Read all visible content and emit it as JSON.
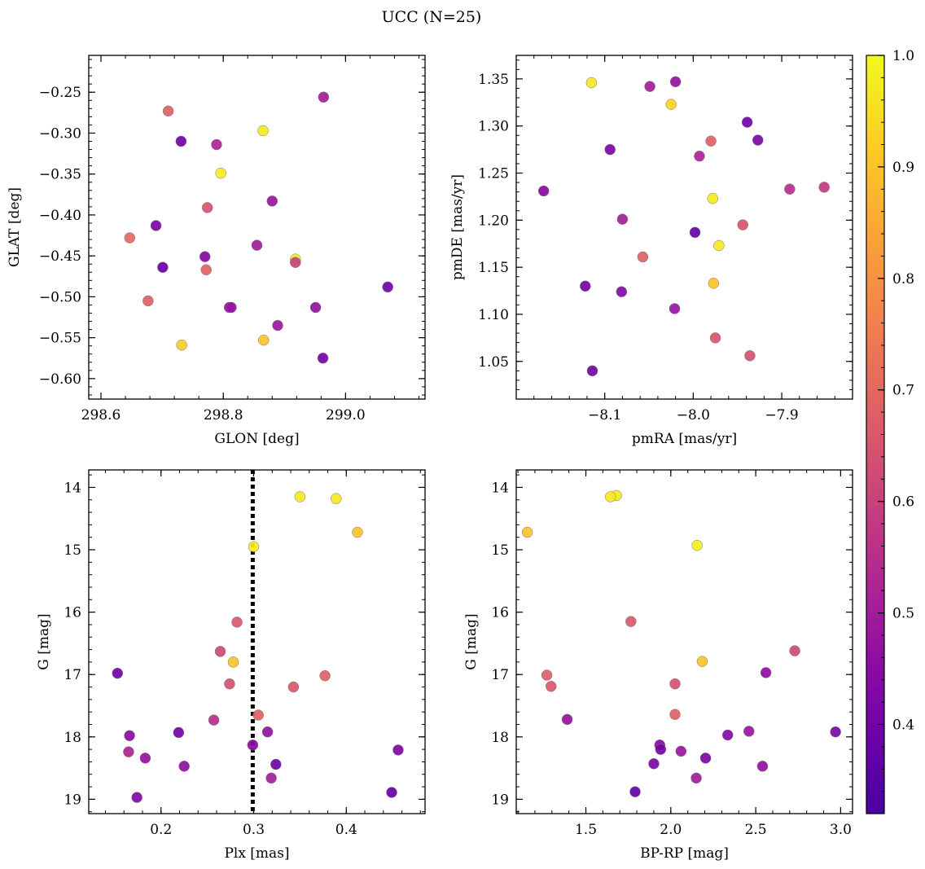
{
  "figure": {
    "title": "UCC (N=25)"
  },
  "chart_data": [
    {
      "type": "scatter",
      "xlabel": "GLON [deg]",
      "ylabel": "GLAT [deg]",
      "xlim": [
        298.58,
        299.13
      ],
      "ylim": [
        -0.625,
        -0.205
      ],
      "xticks": [
        298.6,
        298.8,
        299.0
      ],
      "xtick_labels": [
        "298.6",
        "298.8",
        "299.0"
      ],
      "yticks": [
        -0.6,
        -0.55,
        -0.5,
        -0.45,
        -0.4,
        -0.35,
        -0.3,
        -0.25
      ],
      "ytick_labels": [
        "−0.60",
        "−0.55",
        "−0.50",
        "−0.45",
        "−0.40",
        "−0.35",
        "−0.30",
        "−0.25"
      ],
      "points": [
        {
          "x": 298.964,
          "y": -0.256,
          "c": 0.5
        },
        {
          "x": 298.71,
          "y": -0.273,
          "c": 0.68
        },
        {
          "x": 298.865,
          "y": -0.297,
          "c": 0.97
        },
        {
          "x": 298.731,
          "y": -0.31,
          "c": 0.4
        },
        {
          "x": 298.789,
          "y": -0.314,
          "c": 0.52
        },
        {
          "x": 298.796,
          "y": -0.349,
          "c": 0.98
        },
        {
          "x": 298.88,
          "y": -0.383,
          "c": 0.48
        },
        {
          "x": 298.774,
          "y": -0.391,
          "c": 0.65
        },
        {
          "x": 298.69,
          "y": -0.413,
          "c": 0.42
        },
        {
          "x": 298.647,
          "y": -0.428,
          "c": 0.7
        },
        {
          "x": 298.855,
          "y": -0.437,
          "c": 0.5
        },
        {
          "x": 298.77,
          "y": -0.451,
          "c": 0.44
        },
        {
          "x": 298.918,
          "y": -0.454,
          "c": 0.98
        },
        {
          "x": 298.918,
          "y": -0.458,
          "c": 0.6
        },
        {
          "x": 298.701,
          "y": -0.464,
          "c": 0.38
        },
        {
          "x": 298.772,
          "y": -0.467,
          "c": 0.68
        },
        {
          "x": 299.069,
          "y": -0.488,
          "c": 0.4
        },
        {
          "x": 298.677,
          "y": -0.505,
          "c": 0.68
        },
        {
          "x": 298.81,
          "y": -0.513,
          "c": 0.46
        },
        {
          "x": 298.813,
          "y": -0.513,
          "c": 0.48
        },
        {
          "x": 298.951,
          "y": -0.513,
          "c": 0.47
        },
        {
          "x": 298.889,
          "y": -0.535,
          "c": 0.49
        },
        {
          "x": 298.866,
          "y": -0.553,
          "c": 0.9
        },
        {
          "x": 298.732,
          "y": -0.559,
          "c": 0.92
        },
        {
          "x": 298.963,
          "y": -0.575,
          "c": 0.4
        }
      ]
    },
    {
      "type": "scatter",
      "xlabel": "pmRA [mas/yr]",
      "ylabel": "pmDE [mas/yr]",
      "xlim": [
        -8.2,
        -7.82
      ],
      "ylim": [
        1.01,
        1.375
      ],
      "xticks": [
        -8.1,
        -8.0,
        -7.9
      ],
      "xtick_labels": [
        "−8.1",
        "−8.0",
        "−7.9"
      ],
      "yticks": [
        1.05,
        1.1,
        1.15,
        1.2,
        1.25,
        1.3,
        1.35
      ],
      "ytick_labels": [
        "1.05",
        "1.10",
        "1.15",
        "1.20",
        "1.25",
        "1.30",
        "1.35"
      ],
      "points": [
        {
          "x": -8.115,
          "y": 1.346,
          "c": 0.97
        },
        {
          "x": -8.049,
          "y": 1.342,
          "c": 0.5
        },
        {
          "x": -8.02,
          "y": 1.347,
          "c": 0.47
        },
        {
          "x": -8.025,
          "y": 1.323,
          "c": 0.93
        },
        {
          "x": -7.939,
          "y": 1.304,
          "c": 0.4
        },
        {
          "x": -7.927,
          "y": 1.285,
          "c": 0.42
        },
        {
          "x": -7.98,
          "y": 1.284,
          "c": 0.68
        },
        {
          "x": -8.094,
          "y": 1.275,
          "c": 0.42
        },
        {
          "x": -7.993,
          "y": 1.268,
          "c": 0.52
        },
        {
          "x": -8.169,
          "y": 1.231,
          "c": 0.45
        },
        {
          "x": -7.891,
          "y": 1.233,
          "c": 0.55
        },
        {
          "x": -7.852,
          "y": 1.235,
          "c": 0.58
        },
        {
          "x": -7.978,
          "y": 1.223,
          "c": 0.97
        },
        {
          "x": -8.08,
          "y": 1.201,
          "c": 0.5
        },
        {
          "x": -7.944,
          "y": 1.195,
          "c": 0.65
        },
        {
          "x": -7.998,
          "y": 1.187,
          "c": 0.37
        },
        {
          "x": -7.971,
          "y": 1.173,
          "c": 0.97
        },
        {
          "x": -8.057,
          "y": 1.161,
          "c": 0.68
        },
        {
          "x": -7.977,
          "y": 1.133,
          "c": 0.9
        },
        {
          "x": -8.122,
          "y": 1.13,
          "c": 0.4
        },
        {
          "x": -8.081,
          "y": 1.124,
          "c": 0.44
        },
        {
          "x": -8.021,
          "y": 1.106,
          "c": 0.48
        },
        {
          "x": -7.975,
          "y": 1.075,
          "c": 0.65
        },
        {
          "x": -7.936,
          "y": 1.056,
          "c": 0.64
        },
        {
          "x": -8.114,
          "y": 1.04,
          "c": 0.4
        }
      ]
    },
    {
      "type": "scatter",
      "xlabel": "Plx [mas]",
      "ylabel": "G [mag]",
      "xlim": [
        0.122,
        0.485
      ],
      "ylim": [
        19.23,
        13.72
      ],
      "xticks": [
        0.2,
        0.3,
        0.4
      ],
      "xtick_labels": [
        "0.2",
        "0.3",
        "0.4"
      ],
      "yticks": [
        14,
        15,
        16,
        17,
        18,
        19
      ],
      "ytick_labels": [
        "14",
        "15",
        "16",
        "17",
        "18",
        "19"
      ],
      "vline": {
        "x": 0.299,
        "style": "dotted",
        "color": "#000000"
      },
      "points": [
        {
          "x": 0.35,
          "y": 14.15,
          "c": 0.97
        },
        {
          "x": 0.389,
          "y": 14.18,
          "c": 0.97
        },
        {
          "x": 0.412,
          "y": 14.72,
          "c": 0.9
        },
        {
          "x": 0.3,
          "y": 14.95,
          "c": 0.98
        },
        {
          "x": 0.282,
          "y": 16.16,
          "c": 0.66
        },
        {
          "x": 0.264,
          "y": 16.63,
          "c": 0.62
        },
        {
          "x": 0.278,
          "y": 16.8,
          "c": 0.9
        },
        {
          "x": 0.153,
          "y": 16.98,
          "c": 0.4
        },
        {
          "x": 0.377,
          "y": 17.02,
          "c": 0.68
        },
        {
          "x": 0.274,
          "y": 17.15,
          "c": 0.64
        },
        {
          "x": 0.343,
          "y": 17.2,
          "c": 0.66
        },
        {
          "x": 0.305,
          "y": 17.65,
          "c": 0.68
        },
        {
          "x": 0.257,
          "y": 17.73,
          "c": 0.55
        },
        {
          "x": 0.219,
          "y": 17.93,
          "c": 0.4
        },
        {
          "x": 0.315,
          "y": 17.92,
          "c": 0.47
        },
        {
          "x": 0.166,
          "y": 17.98,
          "c": 0.45
        },
        {
          "x": 0.299,
          "y": 18.13,
          "c": 0.45
        },
        {
          "x": 0.165,
          "y": 18.24,
          "c": 0.52
        },
        {
          "x": 0.456,
          "y": 18.21,
          "c": 0.43
        },
        {
          "x": 0.183,
          "y": 18.34,
          "c": 0.47
        },
        {
          "x": 0.324,
          "y": 18.44,
          "c": 0.4
        },
        {
          "x": 0.225,
          "y": 18.47,
          "c": 0.46
        },
        {
          "x": 0.319,
          "y": 18.66,
          "c": 0.5
        },
        {
          "x": 0.449,
          "y": 18.89,
          "c": 0.38
        },
        {
          "x": 0.174,
          "y": 18.97,
          "c": 0.43
        }
      ]
    },
    {
      "type": "scatter",
      "xlabel": "BP-RP [mag]",
      "ylabel": "G [mag]",
      "xlim": [
        1.09,
        3.07
      ],
      "ylim": [
        19.23,
        13.72
      ],
      "xticks": [
        1.5,
        2.0,
        2.5,
        3.0
      ],
      "xtick_labels": [
        "1.5",
        "2.0",
        "2.5",
        "3.0"
      ],
      "yticks": [
        14,
        15,
        16,
        17,
        18,
        19
      ],
      "ytick_labels": [
        "14",
        "15",
        "16",
        "17",
        "18",
        "19"
      ],
      "points": [
        {
          "x": 1.68,
          "y": 14.13,
          "c": 0.97
        },
        {
          "x": 1.645,
          "y": 14.15,
          "c": 0.97
        },
        {
          "x": 1.155,
          "y": 14.72,
          "c": 0.9
        },
        {
          "x": 2.155,
          "y": 14.93,
          "c": 0.98
        },
        {
          "x": 1.765,
          "y": 16.15,
          "c": 0.66
        },
        {
          "x": 2.73,
          "y": 16.62,
          "c": 0.62
        },
        {
          "x": 2.185,
          "y": 16.79,
          "c": 0.9
        },
        {
          "x": 2.56,
          "y": 16.97,
          "c": 0.46
        },
        {
          "x": 1.27,
          "y": 17.01,
          "c": 0.68
        },
        {
          "x": 2.025,
          "y": 17.15,
          "c": 0.64
        },
        {
          "x": 1.295,
          "y": 17.19,
          "c": 0.66
        },
        {
          "x": 2.025,
          "y": 17.64,
          "c": 0.68
        },
        {
          "x": 1.39,
          "y": 17.72,
          "c": 0.47
        },
        {
          "x": 2.97,
          "y": 17.92,
          "c": 0.42
        },
        {
          "x": 2.46,
          "y": 17.91,
          "c": 0.48
        },
        {
          "x": 2.335,
          "y": 17.97,
          "c": 0.44
        },
        {
          "x": 1.935,
          "y": 18.13,
          "c": 0.45
        },
        {
          "x": 1.94,
          "y": 18.2,
          "c": 0.4
        },
        {
          "x": 2.06,
          "y": 18.23,
          "c": 0.48
        },
        {
          "x": 2.205,
          "y": 18.34,
          "c": 0.42
        },
        {
          "x": 1.9,
          "y": 18.43,
          "c": 0.42
        },
        {
          "x": 2.54,
          "y": 18.47,
          "c": 0.47
        },
        {
          "x": 2.15,
          "y": 18.66,
          "c": 0.5
        },
        {
          "x": 1.79,
          "y": 18.88,
          "c": 0.38
        }
      ]
    }
  ],
  "colorbar": {
    "colormap": "plasma",
    "range": [
      0.32,
      1.0
    ],
    "ticks": [
      0.4,
      0.5,
      0.6,
      0.7,
      0.8,
      0.9,
      1.0
    ],
    "tick_labels": [
      "0.4",
      "0.5",
      "0.6",
      "0.7",
      "0.8",
      "0.9",
      "1.0"
    ]
  }
}
